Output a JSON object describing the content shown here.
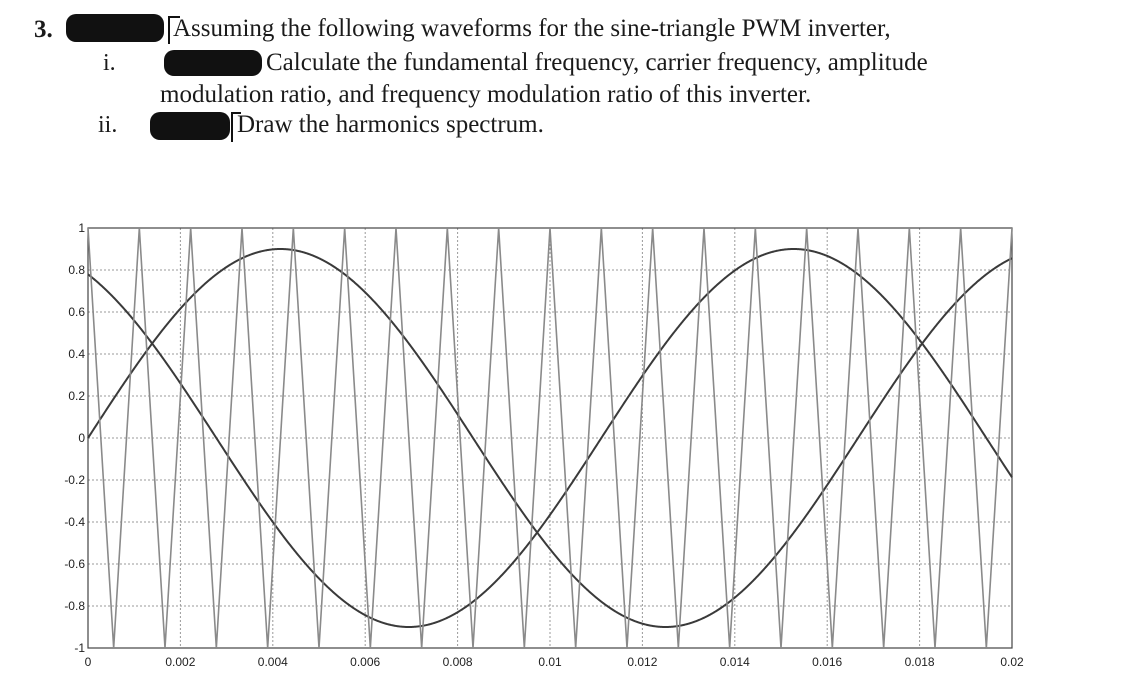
{
  "question": {
    "number": "3.",
    "intro": "Assuming the following waveforms for the sine-triangle PWM inverter,",
    "parts": [
      {
        "numeral": "i.",
        "text_line1": "Calculate  the  fundamental  frequency,  carrier  frequency,  amplitude",
        "text_line2": "modulation ratio, and frequency modulation ratio of this inverter."
      },
      {
        "numeral": "ii.",
        "text": "Draw the harmonics spectrum."
      }
    ]
  },
  "chart_data": {
    "type": "line",
    "title": "",
    "xlabel": "",
    "ylabel": "",
    "xlim": [
      0,
      0.02
    ],
    "ylim": [
      -1,
      1
    ],
    "grid": true,
    "x_ticks": [
      "0",
      "0.002",
      "0.004",
      "0.006",
      "0.008",
      "0.01",
      "0.012",
      "0.014",
      "0.016",
      "0.018",
      "0.02"
    ],
    "y_ticks": [
      "1",
      "0.8",
      "0.6",
      "0.4",
      "0.2",
      "0",
      "-0.2",
      "-0.4",
      "-0.6",
      "-0.8",
      "-1"
    ],
    "series": [
      {
        "type": "sine",
        "amplitude": 0.9,
        "frequency_hz": 60,
        "phase_deg": 0
      },
      {
        "type": "sine",
        "amplitude": 0.9,
        "frequency_hz": 60,
        "phase_deg": 120
      },
      {
        "type": "triangle",
        "amplitude": 1,
        "frequency_hz": 900,
        "period_s": 0.0011111
      }
    ],
    "colors": {
      "waveform": "#3a3a3a",
      "grid": "#9a9a9a"
    }
  }
}
